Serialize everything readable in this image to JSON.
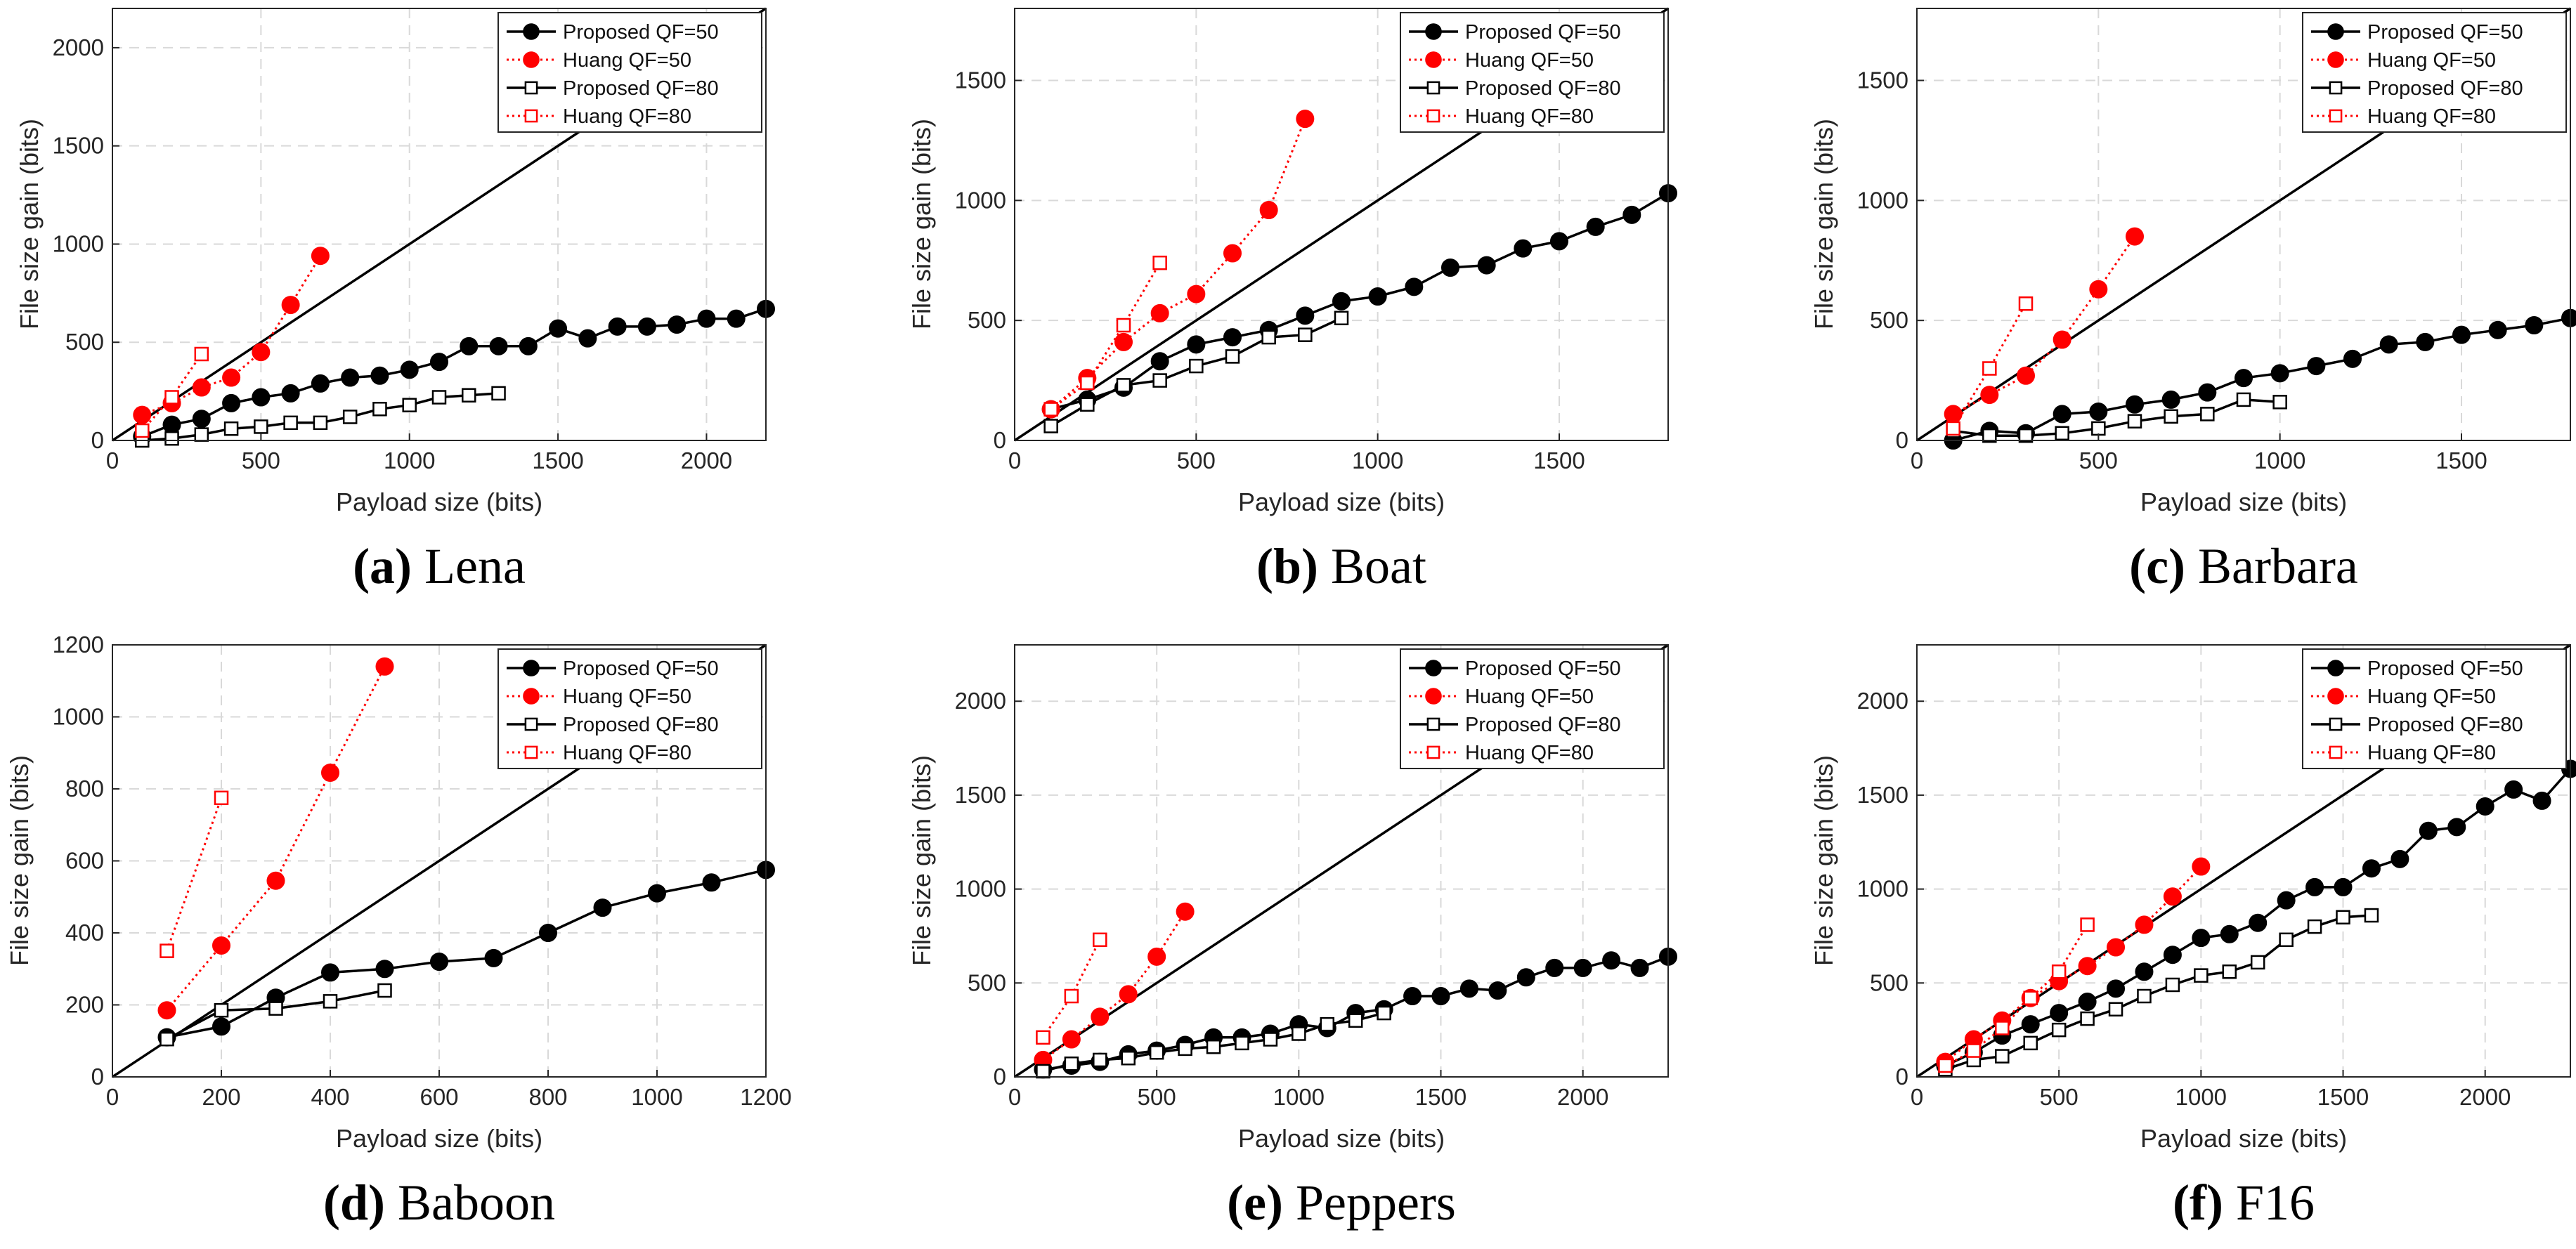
{
  "colors": {
    "proposed": "#000000",
    "huang": "#ff0000",
    "grid": "#d9d9d9",
    "axis": "#262626"
  },
  "icons": {
    "proposed_qf50": "filled-circle-marker",
    "huang_qf50": "filled-red-circle-marker",
    "proposed_qf80": "open-square-marker",
    "huang_qf80": "open-red-square-marker"
  },
  "chart_data": [
    {
      "type": "line",
      "id": "a",
      "caption_label": "(a)",
      "caption_name": "Lena",
      "xlabel": "Payload size (bits)",
      "ylabel": "File size gain (bits)",
      "xlim": [
        0,
        2200
      ],
      "ylim": [
        0,
        2200
      ],
      "xticks": [
        0,
        500,
        1000,
        1500,
        2000
      ],
      "yticks": [
        0,
        500,
        1000,
        1500,
        2000
      ],
      "grid": true,
      "legend_position": "top-right",
      "series": [
        {
          "name": "Proposed QF=50",
          "style": "proposed50",
          "x": [
            100,
            200,
            300,
            400,
            500,
            600,
            700,
            800,
            900,
            1000,
            1100,
            1200,
            1300,
            1400,
            1500,
            1600,
            1700,
            1800,
            1900,
            2000,
            2100,
            2200
          ],
          "y": [
            20,
            80,
            110,
            190,
            220,
            240,
            290,
            320,
            330,
            360,
            400,
            480,
            480,
            480,
            570,
            520,
            580,
            580,
            590,
            620,
            620,
            670
          ]
        },
        {
          "name": "Huang QF=50",
          "style": "huang50",
          "x": [
            100,
            200,
            300,
            400,
            500,
            600,
            700
          ],
          "y": [
            130,
            190,
            270,
            320,
            450,
            690,
            940
          ]
        },
        {
          "name": "Proposed QF=80",
          "style": "proposed80",
          "x": [
            100,
            200,
            300,
            400,
            500,
            600,
            700,
            800,
            900,
            1000,
            1100,
            1200,
            1300
          ],
          "y": [
            0,
            10,
            30,
            60,
            70,
            90,
            90,
            120,
            160,
            180,
            220,
            230,
            240
          ]
        },
        {
          "name": "Huang QF=80",
          "style": "huang80",
          "x": [
            100,
            200,
            300
          ],
          "y": [
            50,
            220,
            440
          ]
        }
      ]
    },
    {
      "type": "line",
      "id": "b",
      "caption_label": "(b)",
      "caption_name": "Boat",
      "xlabel": "Payload size (bits)",
      "ylabel": "File size gain (bits)",
      "xlim": [
        0,
        1800
      ],
      "ylim": [
        0,
        1800
      ],
      "xticks": [
        0,
        500,
        1000,
        1500
      ],
      "yticks": [
        0,
        500,
        1000,
        1500
      ],
      "grid": true,
      "legend_position": "top-right",
      "series": [
        {
          "name": "Proposed QF=50",
          "style": "proposed50",
          "x": [
            100,
            200,
            300,
            400,
            500,
            600,
            700,
            800,
            900,
            1000,
            1100,
            1200,
            1300,
            1400,
            1500,
            1600,
            1700,
            1800
          ],
          "y": [
            130,
            170,
            220,
            330,
            400,
            430,
            460,
            520,
            580,
            600,
            640,
            720,
            730,
            800,
            830,
            890,
            940,
            1030
          ]
        },
        {
          "name": "Huang QF=50",
          "style": "huang50",
          "x": [
            100,
            200,
            300,
            400,
            500,
            600,
            700,
            800
          ],
          "y": [
            130,
            260,
            410,
            530,
            610,
            780,
            960,
            1340
          ]
        },
        {
          "name": "Proposed QF=80",
          "style": "proposed80",
          "x": [
            100,
            200,
            300,
            400,
            500,
            600,
            700,
            800,
            900
          ],
          "y": [
            60,
            150,
            230,
            250,
            310,
            350,
            430,
            440,
            510
          ]
        },
        {
          "name": "Huang QF=80",
          "style": "huang80",
          "x": [
            100,
            200,
            300,
            400
          ],
          "y": [
            130,
            240,
            480,
            740
          ]
        }
      ]
    },
    {
      "type": "line",
      "id": "c",
      "caption_label": "(c)",
      "caption_name": "Barbara",
      "xlabel": "Payload size (bits)",
      "ylabel": "File size gain (bits)",
      "xlim": [
        0,
        1800
      ],
      "ylim": [
        0,
        1800
      ],
      "xticks": [
        0,
        500,
        1000,
        1500
      ],
      "yticks": [
        0,
        500,
        1000,
        1500
      ],
      "grid": true,
      "legend_position": "top-right",
      "series": [
        {
          "name": "Proposed QF=50",
          "style": "proposed50",
          "x": [
            100,
            200,
            300,
            400,
            500,
            600,
            700,
            800,
            900,
            1000,
            1100,
            1200,
            1300,
            1400,
            1500,
            1600,
            1700,
            1800
          ],
          "y": [
            0,
            40,
            30,
            110,
            120,
            150,
            170,
            200,
            260,
            280,
            310,
            340,
            400,
            410,
            440,
            460,
            480,
            510
          ]
        },
        {
          "name": "Huang QF=50",
          "style": "huang50",
          "x": [
            100,
            200,
            300,
            400,
            500,
            600
          ],
          "y": [
            110,
            190,
            270,
            420,
            630,
            850
          ]
        },
        {
          "name": "Proposed QF=80",
          "style": "proposed80",
          "x": [
            100,
            200,
            300,
            400,
            500,
            600,
            700,
            800,
            900,
            1000
          ],
          "y": [
            40,
            20,
            20,
            30,
            50,
            80,
            100,
            110,
            170,
            160
          ]
        },
        {
          "name": "Huang QF=80",
          "style": "huang80",
          "x": [
            100,
            200,
            300
          ],
          "y": [
            50,
            300,
            570
          ]
        }
      ]
    },
    {
      "type": "line",
      "id": "d",
      "caption_label": "(d)",
      "caption_name": "Baboon",
      "xlabel": "Payload size (bits)",
      "ylabel": "File size gain (bits)",
      "xlim": [
        0,
        1200
      ],
      "ylim": [
        0,
        1200
      ],
      "xticks": [
        0,
        200,
        400,
        600,
        800,
        1000,
        1200
      ],
      "yticks": [
        0,
        200,
        400,
        600,
        800,
        1000,
        1200
      ],
      "grid": true,
      "legend_position": "top-right",
      "series": [
        {
          "name": "Proposed QF=50",
          "style": "proposed50",
          "x": [
            100,
            200,
            300,
            400,
            500,
            600,
            700,
            800,
            900,
            1000,
            1100,
            1200
          ],
          "y": [
            110,
            140,
            220,
            290,
            300,
            320,
            330,
            400,
            470,
            510,
            540,
            575
          ]
        },
        {
          "name": "Huang QF=50",
          "style": "huang50",
          "x": [
            100,
            200,
            300,
            400,
            500
          ],
          "y": [
            185,
            365,
            545,
            845,
            1140
          ]
        },
        {
          "name": "Proposed QF=80",
          "style": "proposed80",
          "x": [
            100,
            200,
            300,
            400,
            500
          ],
          "y": [
            105,
            185,
            190,
            210,
            240
          ]
        },
        {
          "name": "Huang QF=80",
          "style": "huang80",
          "x": [
            100,
            200
          ],
          "y": [
            350,
            775
          ]
        }
      ]
    },
    {
      "type": "line",
      "id": "e",
      "caption_label": "(e)",
      "caption_name": "Peppers",
      "xlabel": "Payload size (bits)",
      "ylabel": "File size gain (bits)",
      "xlim": [
        0,
        2300
      ],
      "ylim": [
        0,
        2300
      ],
      "xticks": [
        0,
        500,
        1000,
        1500,
        2000
      ],
      "yticks": [
        0,
        500,
        1000,
        1500,
        2000
      ],
      "grid": true,
      "legend_position": "top-right",
      "series": [
        {
          "name": "Proposed QF=50",
          "style": "proposed50",
          "x": [
            100,
            200,
            300,
            400,
            500,
            600,
            700,
            800,
            900,
            1000,
            1100,
            1200,
            1300,
            1400,
            1500,
            1600,
            1700,
            1800,
            1900,
            2000,
            2100,
            2200,
            2300
          ],
          "y": [
            40,
            60,
            80,
            120,
            140,
            170,
            210,
            210,
            230,
            280,
            260,
            340,
            360,
            430,
            430,
            470,
            460,
            530,
            580,
            580,
            620,
            580,
            640
          ]
        },
        {
          "name": "Huang QF=50",
          "style": "huang50",
          "x": [
            100,
            200,
            300,
            400,
            500,
            600
          ],
          "y": [
            90,
            200,
            320,
            440,
            640,
            880
          ]
        },
        {
          "name": "Proposed QF=80",
          "style": "proposed80",
          "x": [
            100,
            200,
            300,
            400,
            500,
            600,
            700,
            800,
            900,
            1000,
            1100,
            1200,
            1300
          ],
          "y": [
            30,
            70,
            90,
            100,
            130,
            150,
            160,
            180,
            200,
            230,
            280,
            300,
            340
          ]
        },
        {
          "name": "Huang QF=80",
          "style": "huang80",
          "x": [
            100,
            200,
            300
          ],
          "y": [
            210,
            430,
            730
          ]
        }
      ]
    },
    {
      "type": "line",
      "id": "f",
      "caption_label": "(f)",
      "caption_name": "F16",
      "xlabel": "Payload size (bits)",
      "ylabel": "File size gain (bits)",
      "xlim": [
        0,
        2300
      ],
      "ylim": [
        0,
        2300
      ],
      "xticks": [
        0,
        500,
        1000,
        1500,
        2000
      ],
      "yticks": [
        0,
        500,
        1000,
        1500,
        2000
      ],
      "grid": true,
      "legend_position": "top-right",
      "series": [
        {
          "name": "Proposed QF=50",
          "style": "proposed50",
          "x": [
            100,
            200,
            300,
            400,
            500,
            600,
            700,
            800,
            900,
            1000,
            1100,
            1200,
            1300,
            1400,
            1500,
            1600,
            1700,
            1800,
            1900,
            2000,
            2100,
            2200,
            2300
          ],
          "y": [
            60,
            130,
            220,
            280,
            340,
            400,
            470,
            560,
            650,
            740,
            760,
            820,
            940,
            1010,
            1010,
            1110,
            1160,
            1310,
            1330,
            1440,
            1530,
            1470,
            1640
          ]
        },
        {
          "name": "Huang QF=50",
          "style": "huang50",
          "x": [
            100,
            200,
            300,
            400,
            500,
            600,
            700,
            800,
            900,
            1000
          ],
          "y": [
            80,
            200,
            300,
            420,
            510,
            590,
            690,
            810,
            960,
            1120
          ]
        },
        {
          "name": "Proposed QF=80",
          "style": "proposed80",
          "x": [
            100,
            200,
            300,
            400,
            500,
            600,
            700,
            800,
            900,
            1000,
            1100,
            1200,
            1300,
            1400,
            1500,
            1600
          ],
          "y": [
            40,
            90,
            110,
            180,
            250,
            310,
            360,
            430,
            490,
            540,
            560,
            610,
            730,
            800,
            850,
            860
          ]
        },
        {
          "name": "Huang QF=80",
          "style": "huang80",
          "x": [
            100,
            200,
            300,
            400,
            500,
            600
          ],
          "y": [
            60,
            140,
            260,
            420,
            560,
            810
          ]
        }
      ]
    }
  ]
}
